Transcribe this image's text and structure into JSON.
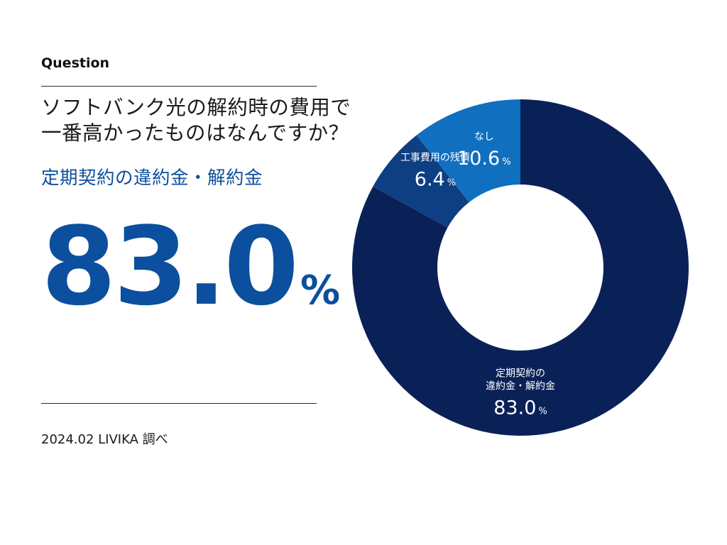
{
  "header": {
    "question_label": "Question",
    "question_line1": "ソフトバンク光の解約時の費用で",
    "question_line2": "一番高かったものはなんですか？"
  },
  "answer": {
    "label": "定期契約の違約金・解約金",
    "value": "83.0",
    "unit": "%"
  },
  "footer": {
    "source": "2024.02 LIVIKA 調べ"
  },
  "colors": {
    "dark_navy": "#0a2158",
    "medium_blue": "#0d4f9c",
    "light_blue": "#1070bf",
    "accent_text": "#0d4f9c"
  },
  "chart_data": {
    "type": "pie",
    "style": "donut",
    "title": "",
    "start": "top",
    "direction": "clockwise",
    "slices": [
      {
        "name_lines": [
          "定期契約の",
          "違約金・解約金"
        ],
        "value": 83.0,
        "value_label": "83.0",
        "unit": "%",
        "color": "#0a2158"
      },
      {
        "name_lines": [
          "工事費用の残債"
        ],
        "value": 6.4,
        "value_label": "6.4",
        "unit": "%",
        "color": "#0d3f82"
      },
      {
        "name_lines": [
          "なし"
        ],
        "value": 10.6,
        "value_label": "10.6",
        "unit": "%",
        "color": "#1070bf"
      }
    ]
  }
}
